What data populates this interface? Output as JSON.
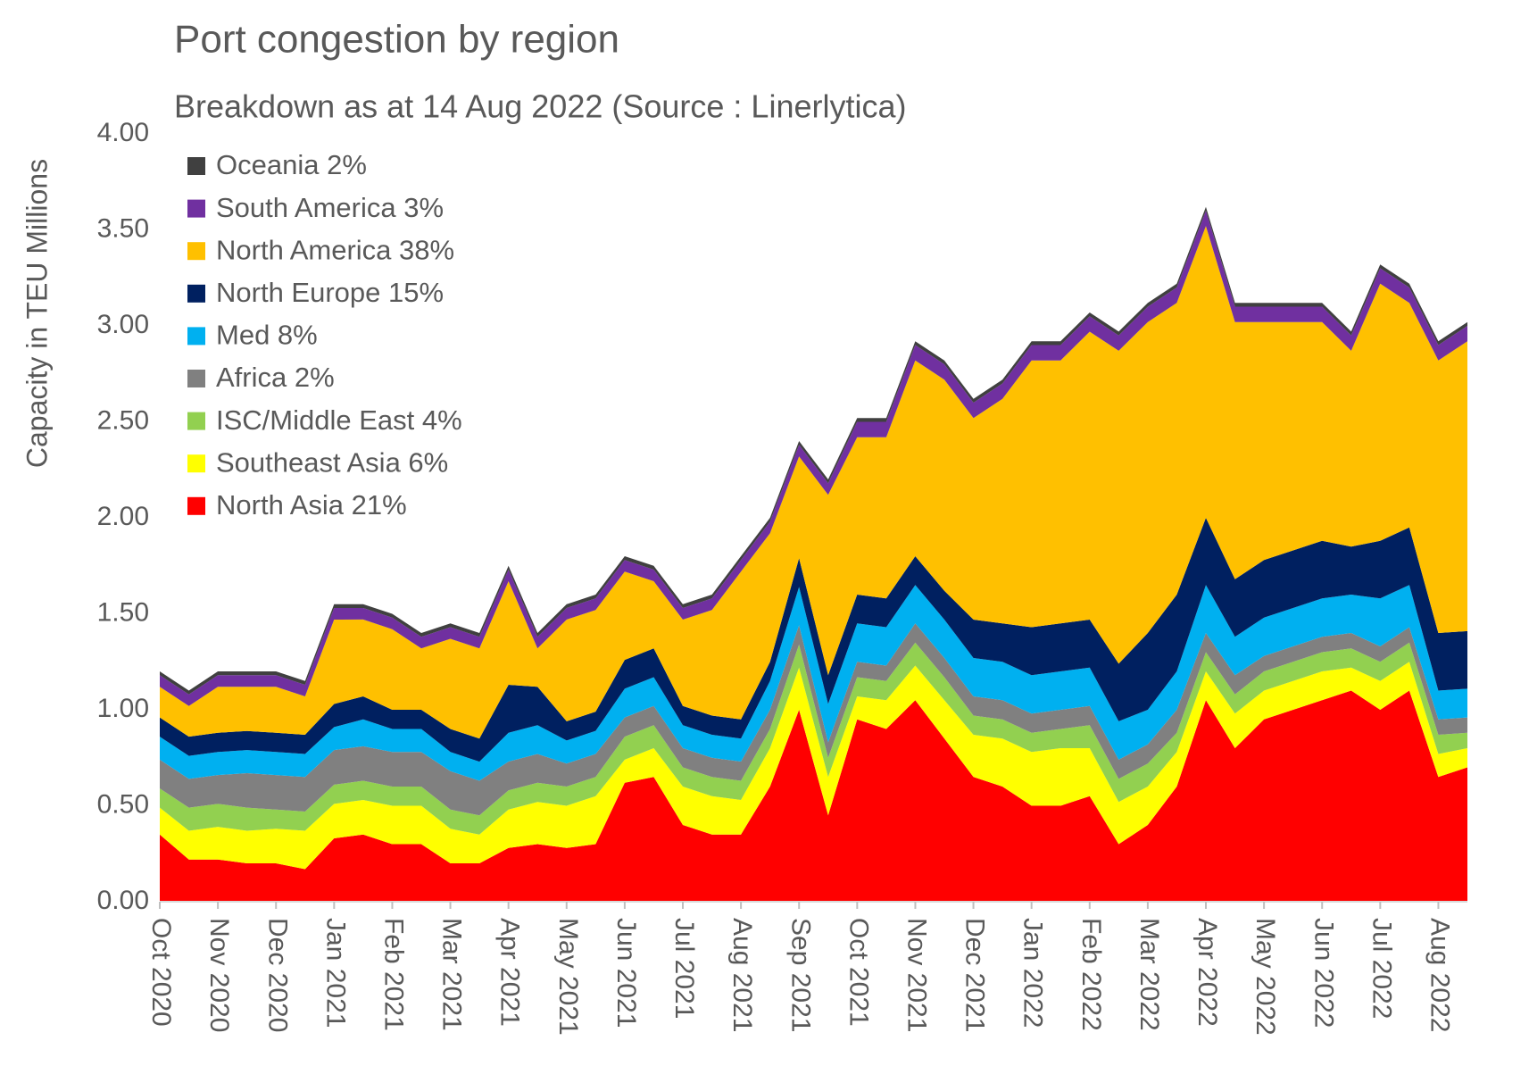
{
  "chart_data": {
    "type": "stacked_area",
    "title": "Port congestion by region",
    "subtitle": "Breakdown as at 14 Aug 2022 (Source : Linerlytica)",
    "y_label": "Capacity in TEU Millions",
    "categories": [
      "Oct 2020",
      null,
      "Nov 2020",
      null,
      "Dec 2020",
      null,
      "Jan 2021",
      null,
      "Feb 2021",
      null,
      "Mar 2021",
      null,
      "Apr 2021",
      null,
      "May 2021",
      null,
      "Jun 2021",
      null,
      "Jul 2021",
      null,
      "Aug 2021",
      null,
      "Sep 2021",
      null,
      "Oct 2021",
      null,
      "Nov 2021",
      null,
      "Dec 2021",
      null,
      "Jan 2022",
      null,
      "Feb 2022",
      null,
      "Mar 2022",
      null,
      "Apr 2022",
      null,
      "May 2022",
      null,
      "Jun 2022",
      null,
      "Jul 2022",
      null,
      "Aug 2022",
      null
    ],
    "ylim": [
      0,
      4
    ],
    "yticks": [
      {
        "value": 0,
        "label": "0.00"
      },
      {
        "value": 0.5,
        "label": "0.50"
      },
      {
        "value": 1,
        "label": "1.00"
      },
      {
        "value": 1.5,
        "label": "1.50"
      },
      {
        "value": 2,
        "label": "2.00"
      },
      {
        "value": 2.5,
        "label": "2.50"
      },
      {
        "value": 3,
        "label": "3.00"
      },
      {
        "value": 3.5,
        "label": "3.50"
      },
      {
        "value": 4,
        "label": "4.00"
      }
    ],
    "legend": "upper left",
    "series": [
      {
        "name": "North Asia 21%",
        "color": "#ff0000",
        "values": [
          0.35,
          0.22,
          0.22,
          0.2,
          0.2,
          0.17,
          0.33,
          0.35,
          0.3,
          0.3,
          0.2,
          0.2,
          0.28,
          0.3,
          0.28,
          0.3,
          0.62,
          0.65,
          0.4,
          0.35,
          0.35,
          0.6,
          1.0,
          0.45,
          0.95,
          0.9,
          1.05,
          0.85,
          0.65,
          0.6,
          0.5,
          0.5,
          0.55,
          0.3,
          0.4,
          0.6,
          1.05,
          0.8,
          0.95,
          1.0,
          1.05,
          1.1,
          1.0,
          1.1,
          0.65,
          0.7
        ]
      },
      {
        "name": "Southeast Asia 6%",
        "color": "#ffff00",
        "values": [
          0.14,
          0.15,
          0.17,
          0.17,
          0.18,
          0.2,
          0.18,
          0.18,
          0.2,
          0.2,
          0.18,
          0.15,
          0.2,
          0.22,
          0.22,
          0.25,
          0.12,
          0.15,
          0.2,
          0.2,
          0.18,
          0.2,
          0.22,
          0.2,
          0.12,
          0.15,
          0.18,
          0.2,
          0.22,
          0.25,
          0.28,
          0.3,
          0.25,
          0.22,
          0.2,
          0.18,
          0.15,
          0.18,
          0.15,
          0.15,
          0.15,
          0.12,
          0.15,
          0.15,
          0.12,
          0.1
        ]
      },
      {
        "name": "ISC/Middle East 4%",
        "color": "#92d050",
        "values": [
          0.1,
          0.12,
          0.12,
          0.12,
          0.1,
          0.1,
          0.1,
          0.1,
          0.1,
          0.1,
          0.1,
          0.1,
          0.1,
          0.1,
          0.1,
          0.1,
          0.12,
          0.12,
          0.1,
          0.1,
          0.1,
          0.1,
          0.12,
          0.1,
          0.1,
          0.1,
          0.12,
          0.12,
          0.1,
          0.1,
          0.1,
          0.1,
          0.12,
          0.12,
          0.12,
          0.1,
          0.1,
          0.1,
          0.1,
          0.1,
          0.1,
          0.1,
          0.1,
          0.1,
          0.1,
          0.08
        ]
      },
      {
        "name": "Africa 2%",
        "color": "#808080",
        "values": [
          0.15,
          0.15,
          0.15,
          0.18,
          0.18,
          0.18,
          0.18,
          0.18,
          0.18,
          0.18,
          0.2,
          0.18,
          0.15,
          0.15,
          0.12,
          0.12,
          0.1,
          0.1,
          0.1,
          0.1,
          0.1,
          0.1,
          0.1,
          0.08,
          0.08,
          0.08,
          0.1,
          0.1,
          0.1,
          0.1,
          0.1,
          0.1,
          0.1,
          0.1,
          0.1,
          0.12,
          0.1,
          0.1,
          0.08,
          0.08,
          0.08,
          0.08,
          0.08,
          0.08,
          0.08,
          0.08
        ]
      },
      {
        "name": "Med 8%",
        "color": "#00b0f0",
        "values": [
          0.12,
          0.12,
          0.12,
          0.12,
          0.12,
          0.12,
          0.12,
          0.14,
          0.12,
          0.12,
          0.1,
          0.1,
          0.15,
          0.15,
          0.12,
          0.12,
          0.15,
          0.15,
          0.12,
          0.12,
          0.12,
          0.15,
          0.2,
          0.2,
          0.2,
          0.2,
          0.2,
          0.2,
          0.2,
          0.2,
          0.2,
          0.2,
          0.2,
          0.2,
          0.18,
          0.2,
          0.25,
          0.2,
          0.2,
          0.2,
          0.2,
          0.2,
          0.25,
          0.22,
          0.15,
          0.15
        ]
      },
      {
        "name": "North Europe 15%",
        "color": "#002060",
        "values": [
          0.1,
          0.1,
          0.1,
          0.1,
          0.1,
          0.1,
          0.12,
          0.12,
          0.1,
          0.1,
          0.12,
          0.12,
          0.25,
          0.2,
          0.1,
          0.1,
          0.15,
          0.15,
          0.1,
          0.1,
          0.1,
          0.1,
          0.15,
          0.15,
          0.15,
          0.15,
          0.15,
          0.15,
          0.2,
          0.2,
          0.25,
          0.25,
          0.25,
          0.3,
          0.4,
          0.4,
          0.35,
          0.3,
          0.3,
          0.3,
          0.3,
          0.25,
          0.3,
          0.3,
          0.3,
          0.3
        ]
      },
      {
        "name": "North America 38%",
        "color": "#ffc000",
        "values": [
          0.16,
          0.16,
          0.24,
          0.23,
          0.24,
          0.2,
          0.44,
          0.4,
          0.42,
          0.32,
          0.47,
          0.47,
          0.54,
          0.2,
          0.53,
          0.53,
          0.46,
          0.35,
          0.45,
          0.55,
          0.77,
          0.67,
          0.53,
          0.94,
          0.82,
          0.84,
          1.02,
          1.1,
          1.05,
          1.17,
          1.39,
          1.37,
          1.5,
          1.63,
          1.62,
          1.52,
          1.52,
          1.34,
          1.24,
          1.19,
          1.14,
          1.02,
          1.34,
          1.17,
          1.42,
          1.51
        ]
      },
      {
        "name": "South America 3%",
        "color": "#7030a0",
        "values": [
          0.06,
          0.06,
          0.06,
          0.06,
          0.06,
          0.06,
          0.06,
          0.06,
          0.06,
          0.06,
          0.06,
          0.06,
          0.06,
          0.06,
          0.06,
          0.06,
          0.06,
          0.06,
          0.06,
          0.06,
          0.06,
          0.06,
          0.06,
          0.06,
          0.08,
          0.08,
          0.08,
          0.08,
          0.08,
          0.08,
          0.08,
          0.08,
          0.08,
          0.08,
          0.08,
          0.08,
          0.08,
          0.08,
          0.08,
          0.08,
          0.08,
          0.08,
          0.08,
          0.08,
          0.08,
          0.08
        ]
      },
      {
        "name": "Oceania 2%",
        "color": "#404040",
        "values": [
          0.02,
          0.02,
          0.02,
          0.02,
          0.02,
          0.02,
          0.02,
          0.02,
          0.02,
          0.02,
          0.02,
          0.02,
          0.02,
          0.02,
          0.02,
          0.02,
          0.02,
          0.02,
          0.02,
          0.02,
          0.02,
          0.02,
          0.02,
          0.02,
          0.02,
          0.02,
          0.02,
          0.02,
          0.02,
          0.02,
          0.02,
          0.02,
          0.02,
          0.02,
          0.02,
          0.02,
          0.02,
          0.02,
          0.02,
          0.02,
          0.02,
          0.02,
          0.02,
          0.02,
          0.02,
          0.02
        ]
      }
    ]
  }
}
